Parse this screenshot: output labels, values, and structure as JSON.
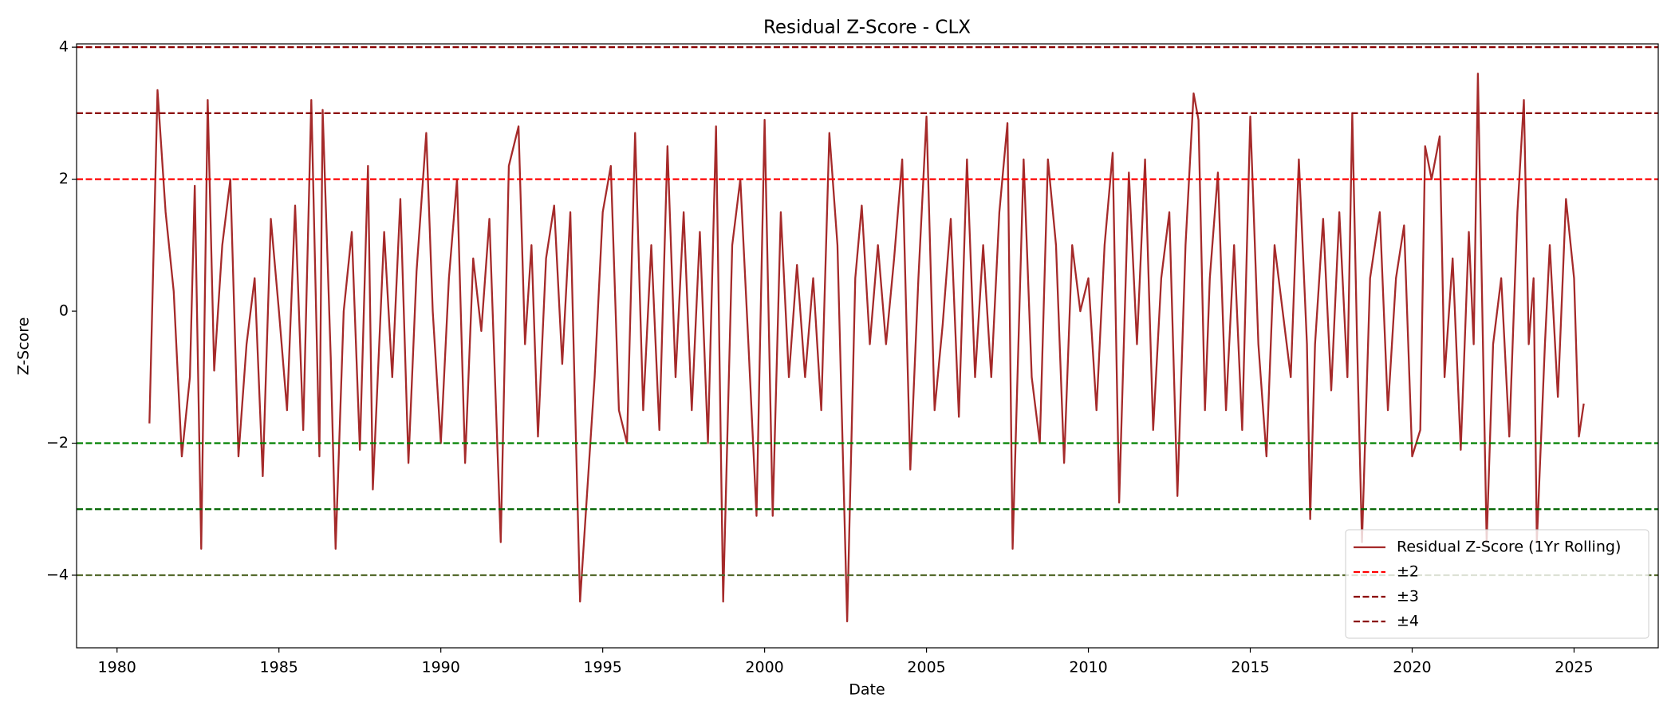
{
  "chart_data": {
    "type": "line",
    "title": "Residual Z-Score - CLX",
    "x_label": "Date",
    "y_label": "Z-Score",
    "xlim": [
      1978.75,
      2027.6
    ],
    "ylim": [
      -5.1,
      4.05
    ],
    "xticks": [
      1980,
      1985,
      1990,
      1995,
      2000,
      2005,
      2010,
      2015,
      2020,
      2025
    ],
    "yticks": [
      {
        "value": -4,
        "label": "−4"
      },
      {
        "value": -2,
        "label": "−2"
      },
      0,
      2,
      4
    ],
    "legend": "lower right",
    "x": [
      1981.0,
      1981.25,
      1981.5,
      1981.75,
      1982.0,
      1982.25,
      1982.4,
      1982.6,
      1982.8,
      1983.0,
      1983.25,
      1983.5,
      1983.75,
      1984.0,
      1984.25,
      1984.5,
      1984.75,
      1985.0,
      1985.25,
      1985.5,
      1985.75,
      1986.0,
      1986.25,
      1986.35,
      1986.6,
      1986.75,
      1987.0,
      1987.25,
      1987.5,
      1987.75,
      1987.9,
      1988.25,
      1988.5,
      1988.75,
      1989.0,
      1989.25,
      1989.55,
      1989.75,
      1990.0,
      1990.25,
      1990.5,
      1990.75,
      1991.0,
      1991.25,
      1991.5,
      1991.85,
      1992.1,
      1992.4,
      1992.6,
      1992.8,
      1993.0,
      1993.25,
      1993.5,
      1993.75,
      1994.0,
      1994.15,
      1994.3,
      1994.75,
      1995.0,
      1995.25,
      1995.5,
      1995.75,
      1996.0,
      1996.25,
      1996.5,
      1996.75,
      1997.0,
      1997.25,
      1997.5,
      1997.75,
      1998.0,
      1998.25,
      1998.5,
      1998.72,
      1999.0,
      1999.25,
      1999.5,
      1999.75,
      2000.0,
      2000.25,
      2000.5,
      2000.75,
      2001.0,
      2001.25,
      2001.5,
      2001.75,
      2002.0,
      2002.25,
      2002.55,
      2002.8,
      2003.0,
      2003.25,
      2003.5,
      2003.75,
      2004.0,
      2004.25,
      2004.5,
      2004.75,
      2005.0,
      2005.25,
      2005.5,
      2005.75,
      2006.0,
      2006.25,
      2006.5,
      2006.75,
      2007.0,
      2007.25,
      2007.5,
      2007.66,
      2008.0,
      2008.25,
      2008.5,
      2008.75,
      2009.0,
      2009.25,
      2009.5,
      2009.75,
      2010.0,
      2010.25,
      2010.5,
      2010.75,
      2010.95,
      2011.25,
      2011.5,
      2011.75,
      2012.0,
      2012.25,
      2012.5,
      2012.75,
      2013.0,
      2013.25,
      2013.4,
      2013.6,
      2013.75,
      2014.0,
      2014.25,
      2014.5,
      2014.75,
      2015.0,
      2015.25,
      2015.5,
      2015.75,
      2016.0,
      2016.25,
      2016.5,
      2016.75,
      2016.85,
      2017.0,
      2017.25,
      2017.5,
      2017.75,
      2018.0,
      2018.15,
      2018.3,
      2018.45,
      2018.7,
      2019.0,
      2019.25,
      2019.5,
      2019.75,
      2020.0,
      2020.25,
      2020.4,
      2020.6,
      2020.85,
      2021.0,
      2021.25,
      2021.5,
      2021.75,
      2021.9,
      2022.03,
      2022.3,
      2022.5,
      2022.75,
      2023.0,
      2023.25,
      2023.45,
      2023.6,
      2023.75,
      2023.85,
      2024.1,
      2024.25,
      2024.5,
      2024.75,
      2025.0,
      2025.15,
      2025.3
    ],
    "series": [
      {
        "name": "Residual Z-Score (1Yr Rolling)",
        "color": "#a52a2a",
        "values": [
          -1.7,
          3.35,
          1.5,
          0.3,
          -2.2,
          -1.0,
          1.9,
          -3.6,
          3.2,
          -0.9,
          1.0,
          2.0,
          -2.2,
          -0.5,
          0.5,
          -2.5,
          1.4,
          0.0,
          -1.5,
          1.6,
          -1.8,
          3.2,
          -2.2,
          3.05,
          -0.7,
          -3.6,
          0.0,
          1.2,
          -2.1,
          2.2,
          -2.7,
          1.2,
          -1.0,
          1.7,
          -2.3,
          0.6,
          2.7,
          0.0,
          -2.0,
          0.5,
          2.0,
          -2.3,
          0.8,
          -0.3,
          1.4,
          -3.5,
          2.2,
          2.8,
          -0.5,
          1.0,
          -1.9,
          0.8,
          1.6,
          -0.8,
          1.5,
          -1.5,
          -4.4,
          -1.0,
          1.5,
          2.2,
          -1.5,
          -2.0,
          2.7,
          -1.5,
          1.0,
          -1.8,
          2.5,
          -1.0,
          1.5,
          -1.5,
          1.2,
          -2.0,
          2.8,
          -4.4,
          1.0,
          2.0,
          -0.5,
          -3.1,
          2.9,
          -3.1,
          1.5,
          -1.0,
          0.7,
          -1.0,
          0.5,
          -1.5,
          2.7,
          1.0,
          -4.7,
          0.5,
          1.6,
          -0.5,
          1.0,
          -0.5,
          0.8,
          2.3,
          -2.4,
          0.5,
          2.95,
          -1.5,
          -0.2,
          1.4,
          -1.6,
          2.3,
          -1.0,
          1.0,
          -1.0,
          1.5,
          2.85,
          -3.6,
          2.3,
          -1.0,
          -2.0,
          2.3,
          1.0,
          -2.3,
          1.0,
          0.0,
          0.5,
          -1.5,
          1.0,
          2.4,
          -2.9,
          2.1,
          -0.5,
          2.3,
          -1.8,
          0.5,
          1.5,
          -2.8,
          1.0,
          3.3,
          2.9,
          -1.5,
          0.5,
          2.1,
          -1.5,
          1.0,
          -1.8,
          2.95,
          -0.5,
          -2.2,
          1.0,
          0.0,
          -1.0,
          2.3,
          -0.5,
          -3.15,
          -0.5,
          1.4,
          -1.2,
          1.5,
          -1.0,
          3.0,
          -0.5,
          -3.5,
          0.5,
          1.5,
          -1.5,
          0.5,
          1.3,
          -2.2,
          -1.8,
          2.5,
          2.0,
          2.65,
          -1.0,
          0.8,
          -2.1,
          1.2,
          -0.5,
          3.6,
          -3.5,
          -0.5,
          0.5,
          -1.9,
          1.5,
          3.2,
          -0.5,
          0.5,
          -3.5,
          -0.5,
          1.0,
          -1.3,
          1.7,
          0.5,
          -1.9,
          -1.4
        ]
      }
    ],
    "hlines": [
      {
        "name": "±2",
        "color": "#ff0000",
        "lower_color": "#008000",
        "values": [
          2,
          -2
        ]
      },
      {
        "name": "±3",
        "color": "#8b0000",
        "lower_color": "#006400",
        "values": [
          3,
          -3
        ]
      },
      {
        "name": "±4",
        "color": "#8b0000",
        "lower_color": "#556b2f",
        "values": [
          4,
          -4
        ]
      }
    ]
  }
}
